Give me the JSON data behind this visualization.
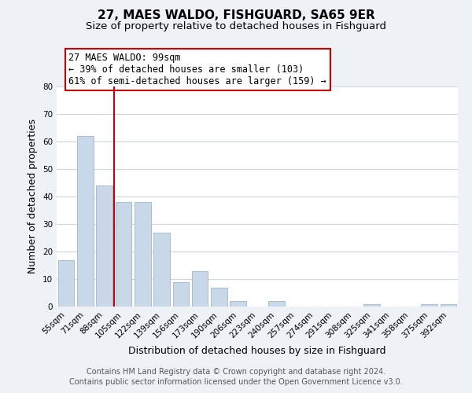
{
  "title": "27, MAES WALDO, FISHGUARD, SA65 9ER",
  "subtitle": "Size of property relative to detached houses in Fishguard",
  "xlabel": "Distribution of detached houses by size in Fishguard",
  "ylabel": "Number of detached properties",
  "bar_color": "#c8d8e8",
  "bar_edge_color": "#a8bece",
  "bin_labels": [
    "55sqm",
    "71sqm",
    "88sqm",
    "105sqm",
    "122sqm",
    "139sqm",
    "156sqm",
    "173sqm",
    "190sqm",
    "206sqm",
    "223sqm",
    "240sqm",
    "257sqm",
    "274sqm",
    "291sqm",
    "308sqm",
    "325sqm",
    "341sqm",
    "358sqm",
    "375sqm",
    "392sqm"
  ],
  "bar_heights": [
    17,
    62,
    44,
    38,
    38,
    27,
    9,
    13,
    7,
    2,
    0,
    2,
    0,
    0,
    0,
    0,
    1,
    0,
    0,
    1,
    1
  ],
  "ylim": [
    0,
    80
  ],
  "yticks": [
    0,
    10,
    20,
    30,
    40,
    50,
    60,
    70,
    80
  ],
  "vline_x": 2.5,
  "vline_color": "#cc0000",
  "ann_line1": "27 MAES WALDO: 99sqm",
  "ann_line2": "← 39% of detached houses are smaller (103)",
  "ann_line3": "61% of semi-detached houses are larger (159) →",
  "footer_line1": "Contains HM Land Registry data © Crown copyright and database right 2024.",
  "footer_line2": "Contains public sector information licensed under the Open Government Licence v3.0.",
  "background_color": "#eef2f7",
  "plot_background_color": "#ffffff",
  "grid_color": "#ccd6e0",
  "title_fontsize": 11,
  "subtitle_fontsize": 9.5,
  "axis_label_fontsize": 9,
  "tick_fontsize": 7.5,
  "footer_fontsize": 7,
  "ann_fontsize": 8.5
}
